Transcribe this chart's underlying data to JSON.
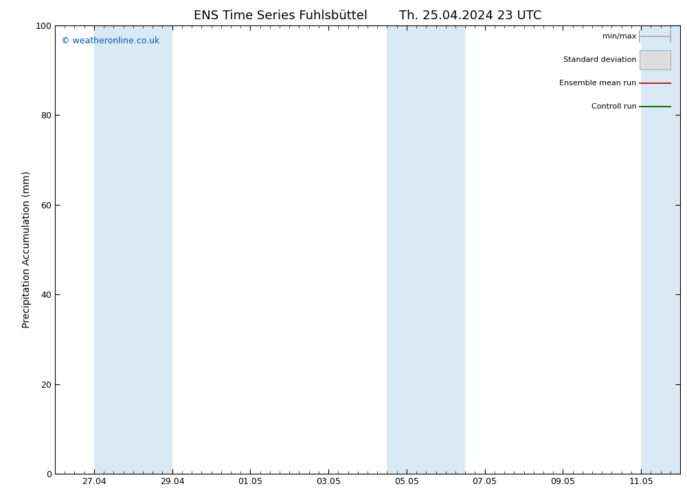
{
  "title": "ENS Time Series Fuhlsbüttel        Th. 25.04.2024 23 UTC",
  "ylabel": "Precipitation Accumulation (mm)",
  "ylim": [
    0,
    100
  ],
  "yticks": [
    0,
    20,
    40,
    60,
    80,
    100
  ],
  "xtick_labels": [
    "27.04",
    "29.04",
    "01.05",
    "03.05",
    "05.05",
    "07.05",
    "09.05",
    "11.05"
  ],
  "shade_color": "#daeaf5",
  "background_color": "#ffffff",
  "copyright_text": "© weatheronline.co.uk",
  "copyright_color": "#0055bb",
  "legend_labels": [
    "min/max",
    "Standard deviation",
    "Ensemble mean run",
    "Controll run"
  ],
  "title_fontsize": 13,
  "label_fontsize": 10,
  "tick_fontsize": 9,
  "legend_fontsize": 8
}
